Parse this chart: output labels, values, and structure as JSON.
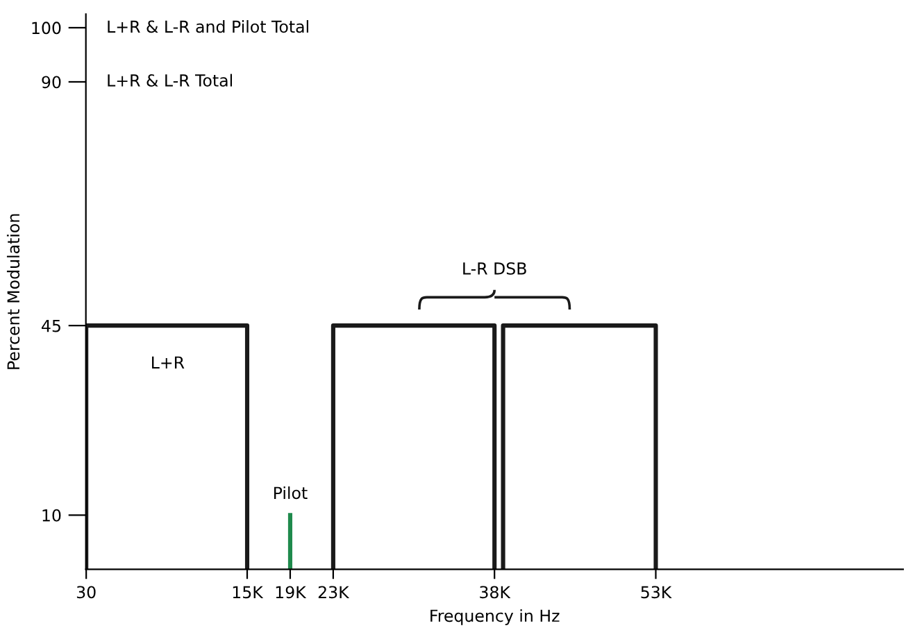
{
  "chart_data": {
    "type": "line",
    "xlabel": "Frequency in Hz",
    "ylabel": "Percent Modulation",
    "xlim": [
      0,
      76000
    ],
    "ylim": [
      0,
      102.5
    ],
    "xticks": [
      {
        "value": 30,
        "label": "30"
      },
      {
        "value": 15000,
        "label": "15K"
      },
      {
        "value": 19000,
        "label": "19K"
      },
      {
        "value": 23000,
        "label": "23K"
      },
      {
        "value": 38000,
        "label": "38K"
      },
      {
        "value": 53000,
        "label": "53K"
      }
    ],
    "yticks": [
      10,
      45,
      90,
      100
    ],
    "grid": false,
    "legend": false,
    "marker": "none",
    "line_style": "solid",
    "series": [
      {
        "color": "#1a1a1a",
        "x": [
          30,
          30,
          15000,
          15000
        ],
        "values": [
          0,
          45,
          45,
          0
        ]
      },
      {
        "color": "#1f8a4c",
        "x": [
          19000,
          19000
        ],
        "values": [
          0,
          10
        ]
      },
      {
        "color": "#1a1a1a",
        "x": [
          23000,
          23000,
          38000,
          38000
        ],
        "values": [
          0,
          45,
          45,
          0
        ]
      },
      {
        "color": "#1a1a1a",
        "x": [
          38800,
          38800,
          53000,
          53000
        ],
        "values": [
          0,
          45,
          45,
          0
        ]
      }
    ],
    "annotations": [
      "L+R & L-R and Pilot Total",
      "L+R & L-R Total",
      "L+R",
      "Pilot",
      "L-R DSB"
    ]
  }
}
